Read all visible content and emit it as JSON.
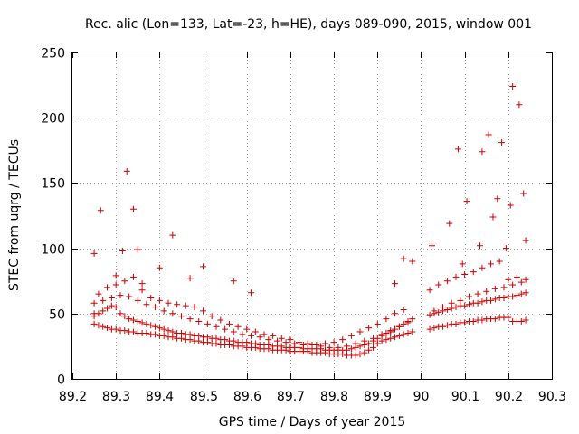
{
  "chart_data": {
    "type": "scatter",
    "title": "Rec. alic (Lon=133, Lat=-23, h=HE), days 089-090, 2015, window 001",
    "xlabel": "GPS time / Days of year 2015",
    "ylabel": "STEC from uqrg / TECUs",
    "xlim": [
      89.2,
      90.3
    ],
    "ylim": [
      0,
      250
    ],
    "xticks": [
      89.2,
      89.3,
      89.4,
      89.5,
      89.6,
      89.7,
      89.8,
      89.9,
      90,
      90.1,
      90.2,
      90.3
    ],
    "xtick_labels": [
      "89.2",
      "89.3",
      "89.4",
      "89.5",
      "89.6",
      "89.7",
      "89.8",
      "89.9",
      "90",
      "90.1",
      "90.2",
      "90.3"
    ],
    "yticks": [
      0,
      50,
      100,
      150,
      200,
      250
    ],
    "ytick_labels": [
      "0",
      "50",
      "100",
      "150",
      "200",
      "250"
    ],
    "grid": true,
    "marker": "plus",
    "color": "#cc0000",
    "series": [
      {
        "name": "STEC",
        "x": [
          89.25,
          89.26,
          89.27,
          89.28,
          89.29,
          89.3,
          89.31,
          89.32,
          89.33,
          89.34,
          89.35,
          89.36,
          89.37,
          89.38,
          89.39,
          89.4,
          89.41,
          89.42,
          89.43,
          89.44,
          89.45,
          89.46,
          89.47,
          89.48,
          89.49,
          89.5,
          89.51,
          89.52,
          89.53,
          89.54,
          89.55,
          89.56,
          89.57,
          89.58,
          89.59,
          89.6,
          89.61,
          89.62,
          89.63,
          89.64,
          89.65,
          89.66,
          89.67,
          89.68,
          89.69,
          89.7,
          89.71,
          89.72,
          89.73,
          89.74,
          89.75,
          89.76,
          89.77,
          89.78,
          89.79,
          89.8,
          89.81,
          89.82,
          89.83,
          89.84,
          89.85,
          89.86,
          89.87,
          89.88,
          89.89,
          89.9,
          89.91,
          89.92,
          89.93,
          89.94,
          89.95,
          89.96,
          89.97,
          89.98,
          90.02,
          90.03,
          90.04,
          90.05,
          90.06,
          90.07,
          90.08,
          90.09,
          90.1,
          90.11,
          90.12,
          90.13,
          90.14,
          90.15,
          90.16,
          90.17,
          90.18,
          90.19,
          90.2,
          90.21,
          90.22,
          90.23,
          90.24,
          89.25,
          89.26,
          89.27,
          89.28,
          89.29,
          89.3,
          89.31,
          89.32,
          89.33,
          89.34,
          89.35,
          89.36,
          89.37,
          89.38,
          89.39,
          89.4,
          89.41,
          89.42,
          89.43,
          89.44,
          89.45,
          89.46,
          89.47,
          89.48,
          89.49,
          89.5,
          89.51,
          89.52,
          89.53,
          89.54,
          89.55,
          89.56,
          89.57,
          89.58,
          89.59,
          89.6,
          89.61,
          89.62,
          89.63,
          89.64,
          89.65,
          89.66,
          89.67,
          89.68,
          89.69,
          89.7,
          89.71,
          89.72,
          89.73,
          89.74,
          89.75,
          89.76,
          89.77,
          89.78,
          89.79,
          89.8,
          89.81,
          89.82,
          89.83,
          89.84,
          89.85,
          89.86,
          89.87,
          89.88,
          89.89,
          89.9,
          89.91,
          89.92,
          89.93,
          89.94,
          89.95,
          89.96,
          89.97,
          89.98,
          90.02,
          90.03,
          90.04,
          90.05,
          90.06,
          90.07,
          90.08,
          90.09,
          90.1,
          90.11,
          90.12,
          90.13,
          90.14,
          90.15,
          90.16,
          90.17,
          90.18,
          90.19,
          90.2,
          90.21,
          90.22,
          90.23,
          90.24,
          89.25,
          89.27,
          89.29,
          89.31,
          89.33,
          89.35,
          89.37,
          89.39,
          89.41,
          89.43,
          89.45,
          89.47,
          89.49,
          89.51,
          89.53,
          89.55,
          89.57,
          89.59,
          89.61,
          89.63,
          89.65,
          89.67,
          89.69,
          89.71,
          89.73,
          89.75,
          89.77,
          89.79,
          89.81,
          89.83,
          89.85,
          89.87,
          89.89,
          89.91,
          89.93,
          89.95,
          89.97,
          90.03,
          90.05,
          90.07,
          90.09,
          90.11,
          90.13,
          90.15,
          90.17,
          90.19,
          90.21,
          90.23,
          89.25,
          89.26,
          89.28,
          89.3,
          89.32,
          89.34,
          89.36,
          89.38,
          89.4,
          89.42,
          89.44,
          89.46,
          89.48,
          89.5,
          89.52,
          89.54,
          89.56,
          89.58,
          89.6,
          89.62,
          89.64,
          89.66,
          89.68,
          89.7,
          89.72,
          89.74,
          89.76,
          89.78,
          89.8,
          89.82,
          89.84,
          89.86,
          89.88,
          89.9,
          89.92,
          89.94,
          89.96,
          90.02,
          90.04,
          90.06,
          90.08,
          90.1,
          90.12,
          90.14,
          90.16,
          90.18,
          90.2,
          90.22,
          90.24,
          89.25,
          89.265,
          89.3,
          89.315,
          89.325,
          89.34,
          89.35,
          89.36,
          89.4,
          89.43,
          89.47,
          89.5,
          89.57,
          89.61,
          89.94,
          89.96,
          89.98,
          90.025,
          90.065,
          90.085,
          90.095,
          90.105,
          90.135,
          90.14,
          90.155,
          90.165,
          90.175,
          90.185,
          90.195,
          90.205,
          90.21,
          90.225,
          90.235,
          90.24
        ],
        "y": [
          42,
          41,
          40,
          39,
          38,
          38,
          37,
          37,
          36,
          36,
          35,
          35,
          35,
          34,
          34,
          33,
          33,
          32,
          32,
          31,
          31,
          30,
          30,
          29,
          29,
          28,
          28,
          27,
          27,
          26,
          26,
          26,
          25,
          25,
          25,
          24,
          24,
          24,
          23,
          23,
          23,
          22,
          22,
          22,
          22,
          21,
          21,
          21,
          21,
          21,
          20,
          20,
          20,
          20,
          19,
          19,
          19,
          19,
          18,
          18,
          18,
          19,
          20,
          22,
          24,
          27,
          29,
          30,
          31,
          32,
          33,
          34,
          35,
          36,
          38,
          39,
          40,
          40,
          41,
          42,
          42,
          43,
          43,
          44,
          44,
          45,
          45,
          46,
          46,
          46,
          47,
          47,
          47,
          44,
          44,
          44,
          45,
          48,
          50,
          52,
          54,
          56,
          55,
          50,
          48,
          46,
          45,
          44,
          43,
          42,
          41,
          40,
          39,
          38,
          37,
          36,
          35,
          35,
          34,
          34,
          33,
          33,
          32,
          32,
          31,
          31,
          30,
          30,
          29,
          29,
          28,
          28,
          28,
          27,
          27,
          26,
          26,
          26,
          25,
          25,
          25,
          24,
          24,
          24,
          24,
          23,
          23,
          23,
          23,
          23,
          22,
          22,
          22,
          22,
          22,
          22,
          23,
          24,
          25,
          26,
          27,
          29,
          31,
          33,
          35,
          36,
          38,
          40,
          42,
          44,
          46,
          49,
          50,
          51,
          52,
          53,
          54,
          55,
          56,
          56,
          57,
          58,
          58,
          59,
          60,
          60,
          61,
          62,
          62,
          63,
          63,
          64,
          65,
          66,
          58,
          60,
          62,
          64,
          63,
          60,
          57,
          55,
          52,
          50,
          48,
          46,
          44,
          42,
          40,
          38,
          36,
          34,
          33,
          32,
          30,
          29,
          28,
          27,
          26,
          26,
          25,
          24,
          24,
          25,
          27,
          29,
          31,
          34,
          37,
          40,
          43,
          52,
          55,
          58,
          60,
          63,
          65,
          67,
          69,
          70,
          72,
          74,
          50,
          65,
          70,
          72,
          75,
          78,
          68,
          62,
          60,
          58,
          57,
          56,
          55,
          52,
          48,
          45,
          42,
          40,
          38,
          36,
          34,
          33,
          31,
          30,
          28,
          27,
          26,
          27,
          28,
          30,
          33,
          36,
          39,
          42,
          46,
          50,
          53,
          68,
          72,
          75,
          78,
          80,
          82,
          85,
          88,
          90,
          76,
          78,
          76,
          96,
          129,
          79,
          98,
          159,
          130,
          99,
          73,
          85,
          110,
          77,
          86,
          75,
          66,
          73,
          92,
          90,
          102,
          119,
          176,
          88,
          136,
          102,
          174,
          187,
          124,
          138,
          181,
          100,
          133,
          224,
          210,
          142,
          106
        ]
      }
    ]
  }
}
